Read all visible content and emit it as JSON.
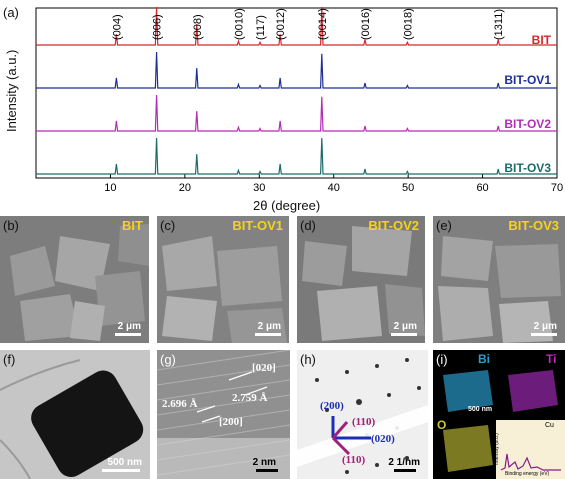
{
  "figure": {
    "xrd": {
      "panel_label": "(a)",
      "ylabel": "Intensity (a.u.)",
      "xlabel": "2θ (degree)",
      "xticks": [
        "10",
        "20",
        "30",
        "40",
        "50",
        "60",
        "70"
      ],
      "peak_labels": [
        "(004)",
        "(006)",
        "(008)",
        "(0010)",
        "(117)",
        "(0012)",
        "(0014)",
        "(0016)",
        "(0018)",
        "(1311)"
      ],
      "series_labels": [
        "BIT",
        "BIT-OV1",
        "BIT-OV2",
        "BIT-OV3"
      ],
      "colors": [
        "#d8262a",
        "#1c2f99",
        "#b22db5",
        "#1d6b6a"
      ]
    },
    "sem": [
      {
        "label": "(b)",
        "title": "BIT",
        "scale": "2 μm"
      },
      {
        "label": "(c)",
        "title": "BIT-OV1",
        "scale": "2 μm"
      },
      {
        "label": "(d)",
        "title": "BIT-OV2",
        "scale": "2 μm"
      },
      {
        "label": "(e)",
        "title": "BIT-OV3",
        "scale": "2 μm"
      }
    ],
    "tem": {
      "label": "(f)",
      "scale": "500 nm"
    },
    "hrtem": {
      "label": "(g)",
      "d1": "2.696 Å",
      "d2": "2.759 Å",
      "plane1": "[200]",
      "plane2": "[020]",
      "scale": "2 nm"
    },
    "saed": {
      "label": "(h)",
      "s200": "(200)",
      "s110a": "(110)",
      "s020": "(020)",
      "s110b": "(110)",
      "scale": "2 1/nm"
    },
    "eds": {
      "label": "(i)",
      "bi": "Bi",
      "ti": "Ti",
      "o": "O",
      "scale": "500 nm",
      "cu": "Cu",
      "ylabel": "Intensity (a.u.)",
      "xlabel": "Binding energy (eV)",
      "xticks": [
        "0",
        "3",
        "6",
        "9",
        "12",
        "15"
      ]
    }
  },
  "chart_data": {
    "type": "line",
    "xlabel": "2θ (degree)",
    "ylabel": "Intensity (a.u.)",
    "xlim": [
      0,
      70
    ],
    "series": [
      {
        "name": "BIT",
        "peaks_x": [
          10.8,
          16.2,
          21.6,
          27.2,
          30.1,
          32.8,
          38.4,
          44.2,
          49.9,
          62.1
        ],
        "peaks_rel": [
          0.28,
          1.0,
          0.55,
          0.1,
          0.07,
          0.28,
          1.0,
          0.14,
          0.07,
          0.14
        ]
      },
      {
        "name": "BIT-OV1",
        "peaks_x": [
          10.8,
          16.2,
          21.6,
          27.2,
          30.1,
          32.8,
          38.4,
          44.2,
          49.9,
          62.1
        ],
        "peaks_rel": [
          0.28,
          1.0,
          0.55,
          0.1,
          0.07,
          0.28,
          0.95,
          0.14,
          0.07,
          0.14
        ]
      },
      {
        "name": "BIT-OV2",
        "peaks_x": [
          10.8,
          16.2,
          21.6,
          27.2,
          30.1,
          32.8,
          38.4,
          44.2,
          49.9,
          62.1
        ],
        "peaks_rel": [
          0.28,
          1.0,
          0.55,
          0.1,
          0.07,
          0.28,
          0.95,
          0.14,
          0.07,
          0.14
        ]
      },
      {
        "name": "BIT-OV3",
        "peaks_x": [
          10.8,
          16.2,
          21.6,
          27.2,
          30.1,
          32.8,
          38.4,
          44.2,
          49.9,
          62.1
        ],
        "peaks_rel": [
          0.28,
          1.0,
          0.55,
          0.1,
          0.07,
          0.28,
          1.0,
          0.14,
          0.07,
          0.14
        ]
      }
    ]
  }
}
